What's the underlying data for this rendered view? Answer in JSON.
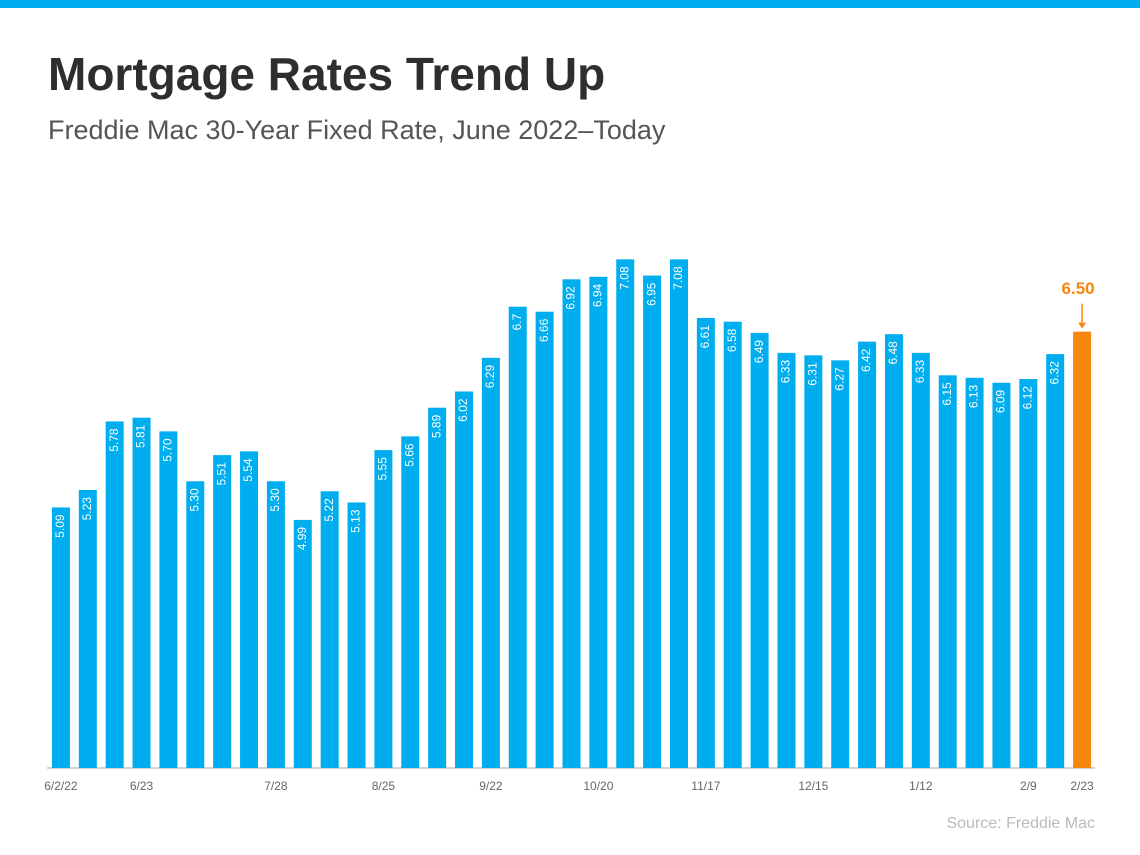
{
  "chart_data": {
    "type": "bar",
    "title": "Mortgage Rates Trend Up",
    "subtitle": "Freddie Mac 30-Year Fixed Rate, June 2022–Today",
    "source": "Source: Freddie Mac",
    "categories": [
      "6/2/22",
      null,
      null,
      "6/23",
      null,
      null,
      null,
      null,
      "7/28",
      null,
      null,
      null,
      "8/25",
      null,
      null,
      null,
      "9/22",
      null,
      null,
      null,
      "10/20",
      null,
      null,
      null,
      "11/17",
      null,
      null,
      null,
      "12/15",
      null,
      null,
      null,
      "1/12",
      null,
      null,
      null,
      "2/9",
      null,
      "2/23"
    ],
    "values": [
      5.09,
      5.23,
      5.78,
      5.81,
      5.7,
      5.3,
      5.51,
      5.54,
      5.3,
      4.99,
      5.22,
      5.13,
      5.55,
      5.66,
      5.89,
      6.02,
      6.29,
      6.7,
      6.66,
      6.92,
      6.94,
      7.08,
      6.95,
      7.08,
      6.61,
      6.58,
      6.49,
      6.33,
      6.31,
      6.27,
      6.42,
      6.48,
      6.33,
      6.15,
      6.13,
      6.09,
      6.12,
      6.32,
      6.5
    ],
    "value_labels": [
      "5.09",
      "5.23",
      "5.78",
      "5.81",
      "5.70",
      "5.30",
      "5.51",
      "5.54",
      "5.30",
      "4.99",
      "5.22",
      "5.13",
      "5.55",
      "5.66",
      "5.89",
      "6.02",
      "6.29",
      "6.7",
      "6.66",
      "6.92",
      "6.94",
      "7.08",
      "6.95",
      "7.08",
      "6.61",
      "6.58",
      "6.49",
      "6.33",
      "6.31",
      "6.27",
      "6.42",
      "6.48",
      "6.33",
      "6.15",
      "6.13",
      "6.09",
      "6.12",
      "6.32",
      "6.50"
    ],
    "color": "#00aeef",
    "colors": [
      "#00aeef",
      "#00aeef",
      "#00aeef",
      "#00aeef",
      "#00aeef",
      "#00aeef",
      "#00aeef",
      "#00aeef",
      "#00aeef",
      "#00aeef",
      "#00aeef",
      "#00aeef",
      "#00aeef",
      "#00aeef",
      "#00aeef",
      "#00aeef",
      "#00aeef",
      "#00aeef",
      "#00aeef",
      "#00aeef",
      "#00aeef",
      "#00aeef",
      "#00aeef",
      "#00aeef",
      "#00aeef",
      "#00aeef",
      "#00aeef",
      "#00aeef",
      "#00aeef",
      "#00aeef",
      "#00aeef",
      "#00aeef",
      "#00aeef",
      "#00aeef",
      "#00aeef",
      "#00aeef",
      "#00aeef",
      "#00aeef",
      "#f7860f"
    ],
    "ylim": [
      3,
      7.5
    ],
    "grid": false
  }
}
